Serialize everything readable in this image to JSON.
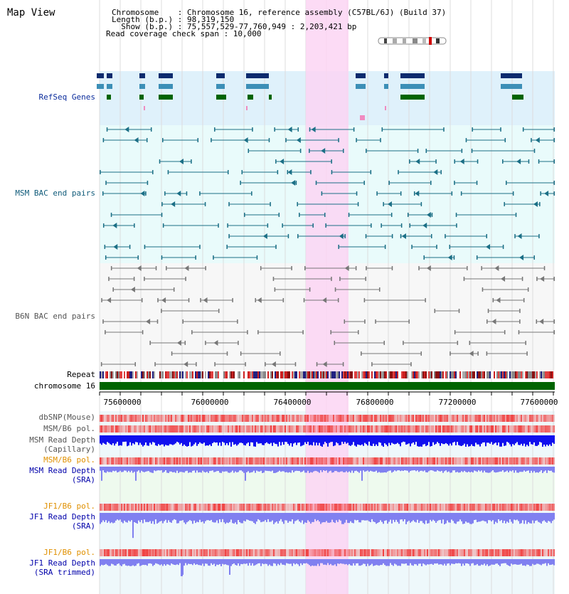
{
  "title": "Map View",
  "info": {
    "chromosome_label": "Chromosome    : Chromosome 16, reference assembly (C57BL/6J) (Build 37)",
    "length_label": "Length (b.p.) : 98,319,150",
    "show_label": "  Show (b.p.) : 75,557,529-77,760,949 : 2,203,421 bp",
    "coverage_label": "Read coverage check span : 10,000"
  },
  "tracks": {
    "refseq": "RefSeq Genes",
    "msm_bac": "MSM BAC end pairs",
    "b6n_bac": "B6N BAC end pairs",
    "repeat": "Repeat",
    "chromosome": "chromosome 16",
    "dbsnp": "dbSNP(Mouse)",
    "msm_pol1": "MSM/B6 pol.",
    "msm_depth_cap_1": "MSM Read Depth",
    "msm_depth_cap_2": "(Capillary)",
    "msm_pol2": "MSM/B6 pol.",
    "msm_depth_sra_1": "MSM Read Depth",
    "msm_depth_sra_2": "(SRA)",
    "jf1_pol1": "JF1/B6 pol.",
    "jf1_depth_sra_1": "JF1 Read Depth",
    "jf1_depth_sra_2": "(SRA)",
    "jf1_pol2": "JF1/B6 pol.",
    "jf1_depth_trim_1": "JF1 Read Depth",
    "jf1_depth_trim_2": "(SRA trimmed)"
  },
  "axis": {
    "ticks": [
      "75600000",
      "76000000",
      "76400000",
      "76800000",
      "77200000",
      "77600000"
    ]
  },
  "colors": {
    "highlight": "#fbd5f3",
    "refseq_bg": "#dff1fb",
    "msm_bg": "#e9fbfb",
    "b6n_bg": "#f7f7f7",
    "gene_dark": "#0c2b6e",
    "gene_mid": "#3c8fb7",
    "gene_green": "#006400",
    "msm_line": "#1b6f86",
    "b6n_line": "#777777",
    "chrom_bar": "#006400",
    "depth_blue": "#1010ee",
    "depth_light": "#8080f0",
    "pol_red": "#f04040"
  }
}
